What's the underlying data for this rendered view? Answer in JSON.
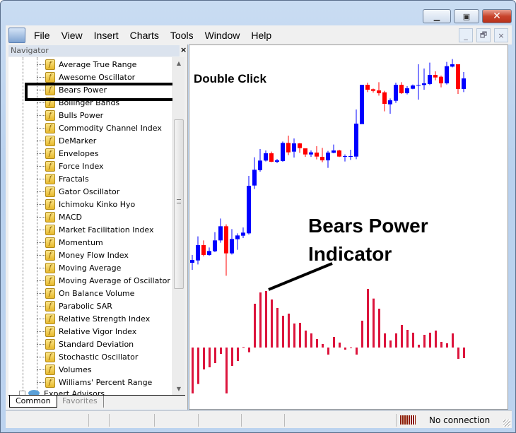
{
  "window": {
    "controls": {
      "minimize": "▁",
      "maximize": "▣",
      "close": "✕"
    }
  },
  "menu": [
    "File",
    "View",
    "Insert",
    "Charts",
    "Tools",
    "Window",
    "Help"
  ],
  "mdi_controls": {
    "minimize": "_",
    "restore": "🗗",
    "close": "×"
  },
  "navigator": {
    "title": "Navigator",
    "close": "×",
    "items": [
      "Average True Range",
      "Awesome Oscillator",
      "Bears Power",
      "Bollinger Bands",
      "Bulls Power",
      "Commodity Channel Index",
      "DeMarker",
      "Envelopes",
      "Force Index",
      "Fractals",
      "Gator Oscillator",
      "Ichimoku Kinko Hyo",
      "MACD",
      "Market Facilitation Index",
      "Momentum",
      "Money Flow Index",
      "Moving Average",
      "Moving Average of Oscillator",
      "On Balance Volume",
      "Parabolic SAR",
      "Relative Strength Index",
      "Relative Vigor Index",
      "Standard Deviation",
      "Stochastic Oscillator",
      "Volumes",
      "Williams' Percent Range"
    ],
    "highlighted": "Bears Power",
    "folder": "Expert Advisors",
    "tabs": [
      "Common",
      "Favorites"
    ],
    "active_tab": "Common"
  },
  "annotations": {
    "double_click": "Double Click",
    "indicator_line1": "Bears Power",
    "indicator_line2": "Indicator"
  },
  "status": {
    "connection": "No connection"
  },
  "colors": {
    "bull": "#0000ff",
    "bear": "#ff0000",
    "indicator": "#dc143c"
  },
  "chart_data": {
    "type": "candlestick",
    "candles": [
      [
        115,
        148,
        85,
        127
      ],
      [
        125,
        227,
        108,
        190
      ],
      [
        190,
        210,
        142,
        148
      ],
      [
        148,
        180,
        145,
        165
      ],
      [
        164,
        245,
        160,
        210
      ],
      [
        210,
        303,
        200,
        270
      ],
      [
        270,
        278,
        60,
        155
      ],
      [
        155,
        258,
        150,
        216
      ],
      [
        215,
        240,
        170,
        231
      ],
      [
        230,
        265,
        220,
        243
      ],
      [
        240,
        484,
        235,
        442
      ],
      [
        443,
        563,
        428,
        510
      ],
      [
        508,
        598,
        502,
        549
      ],
      [
        549,
        592,
        545,
        580
      ],
      [
        580,
        587,
        542,
        544
      ],
      [
        544,
        556,
        538,
        550
      ],
      [
        547,
        630,
        544,
        624
      ],
      [
        624,
        655,
        572,
        584
      ],
      [
        587,
        643,
        562,
        622
      ],
      [
        622,
        624,
        582,
        602
      ],
      [
        601,
        601,
        565,
        575
      ],
      [
        575,
        592,
        565,
        584
      ],
      [
        583,
        610,
        554,
        566
      ],
      [
        565,
        603,
        542,
        550
      ],
      [
        550,
        590,
        518,
        583
      ],
      [
        582,
        617,
        580,
        592
      ],
      [
        592,
        595,
        564,
        566
      ],
      [
        566,
        575,
        545,
        568
      ],
      [
        566,
        595,
        552,
        568
      ],
      [
        566,
        766,
        555,
        706
      ],
      [
        704,
        871,
        704,
        871
      ],
      [
        871,
        880,
        840,
        850
      ],
      [
        852,
        855,
        838,
        845
      ],
      [
        847,
        882,
        825,
        835
      ],
      [
        839,
        845,
        758,
        790
      ],
      [
        788,
        813,
        748,
        805
      ],
      [
        803,
        880,
        794,
        871
      ],
      [
        871,
        882,
        832,
        835
      ],
      [
        835,
        865,
        830,
        856
      ],
      [
        854,
        872,
        852,
        868
      ],
      [
        867,
        958,
        808,
        870
      ],
      [
        870,
        940,
        850,
        877
      ],
      [
        874,
        965,
        870,
        913
      ],
      [
        913,
        928,
        890,
        902
      ],
      [
        905,
        910,
        860,
        877
      ],
      [
        877,
        968,
        872,
        950
      ],
      [
        948,
        980,
        945,
        958
      ],
      [
        958,
        958,
        832,
        853
      ],
      [
        853,
        925,
        840,
        898
      ]
    ],
    "indicator": {
      "type": "histogram",
      "values": [
        -1.95,
        -1.55,
        -0.93,
        -0.84,
        -0.66,
        -0.27,
        -1.95,
        -0.78,
        -0.57,
        0.02,
        -0.2,
        1.86,
        2.34,
        2.4,
        2.04,
        1.68,
        1.35,
        1.44,
        1.02,
        1.05,
        0.72,
        0.6,
        0.36,
        0.15,
        -0.3,
        0.45,
        0.21,
        -0.09,
        -0.02,
        -0.3,
        1.14,
        2.49,
        2.08,
        1.65,
        0.6,
        0.3,
        0.6,
        0.96,
        0.75,
        0.63,
        0.12,
        0.54,
        0.63,
        0.72,
        0.24,
        0.18,
        0.6,
        -0.48,
        -0.45
      ]
    }
  }
}
